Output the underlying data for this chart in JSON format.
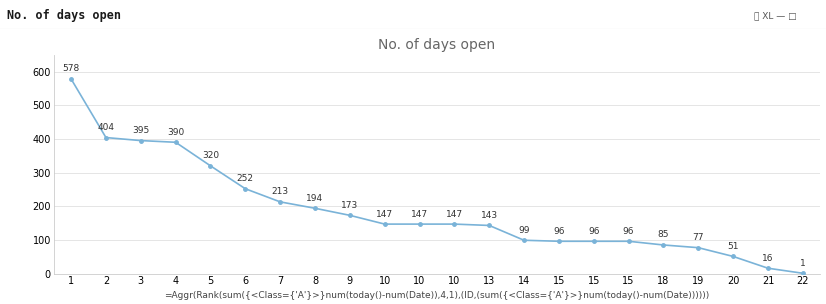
{
  "title": "No. of days open",
  "header_title": "No. of days open",
  "x_values": [
    1,
    2,
    3,
    4,
    5,
    6,
    7,
    8,
    9,
    10,
    10,
    10,
    13,
    14,
    15,
    15,
    15,
    18,
    19,
    20,
    21,
    22
  ],
  "y_values": [
    578,
    404,
    395,
    390,
    320,
    252,
    213,
    194,
    173,
    147,
    147,
    147,
    143,
    99,
    96,
    96,
    96,
    85,
    77,
    51,
    16,
    1
  ],
  "x_tick_labels": [
    "1",
    "2",
    "3",
    "4",
    "5",
    "6",
    "7",
    "8",
    "9",
    "10",
    "10",
    "10",
    "13",
    "14",
    "15",
    "15",
    "15",
    "18",
    "19",
    "20",
    "21",
    "22"
  ],
  "point_labels": [
    "578",
    "404",
    "395",
    "390",
    "320",
    "252",
    "213",
    "194",
    "173",
    "147",
    "147",
    "147",
    "143",
    "99",
    "96",
    "96",
    "96",
    "85",
    "77",
    "51",
    "16",
    "1"
  ],
  "xlabel": "=Aggr(Rank(sum({<Class={'A'}>}num(today()-num(Date)),4,1),(ID,(sum({<Class={'A'}>}num(today()-num(Date))))))",
  "ylim": [
    0,
    650
  ],
  "yticks": [
    0,
    100,
    200,
    300,
    400,
    500,
    600
  ],
  "line_color": "#7ab3d8",
  "bg_color": "#ffffff",
  "chart_bg": "#ffffff",
  "header_bg": "#e8e8e8",
  "header_text_color": "#1a1a1a",
  "title_color": "#666666",
  "label_fontsize": 6.5,
  "title_fontsize": 10,
  "axis_fontsize": 7,
  "xlabel_fontsize": 6.5,
  "header_fontsize": 8.5
}
